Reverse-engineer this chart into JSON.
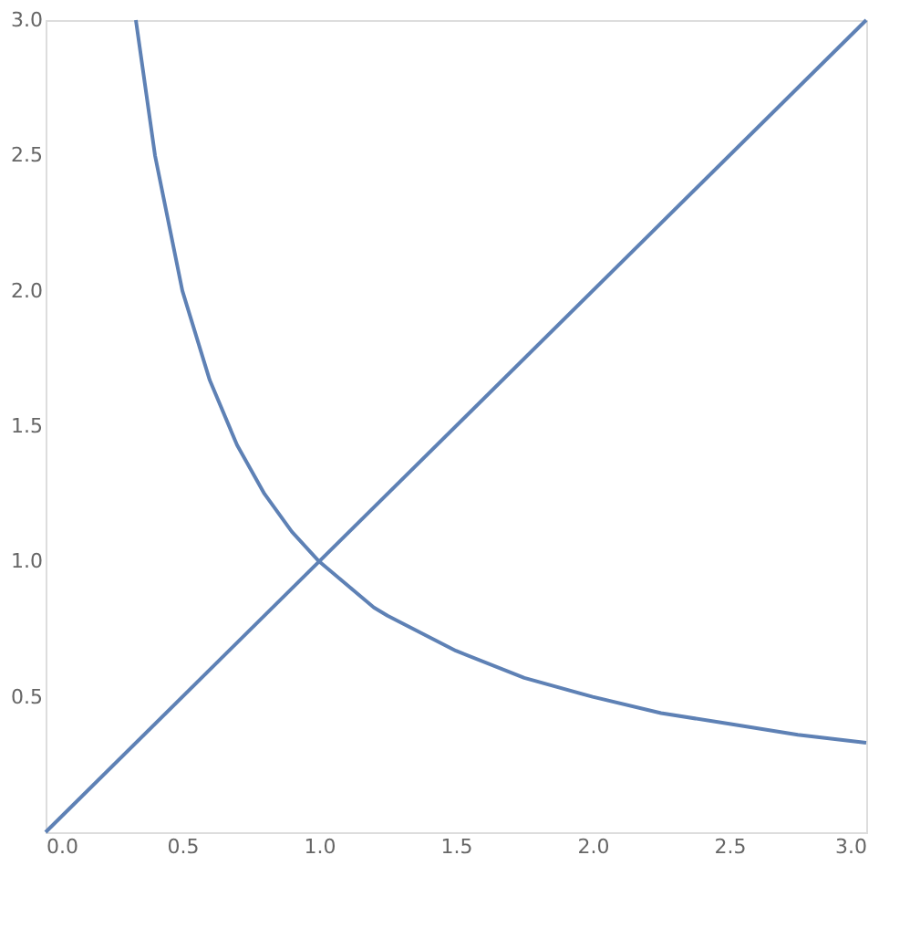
{
  "chart_data": {
    "type": "line",
    "grid": false,
    "legend": false,
    "marker": "none",
    "line_style": "solid",
    "xlim": [
      0,
      3
    ],
    "ylim": [
      0,
      3
    ],
    "xticks": [
      {
        "value": 0,
        "label": "0.0"
      },
      {
        "value": 0.5,
        "label": "0.5"
      },
      {
        "value": 1,
        "label": "1.0"
      },
      {
        "value": 1.5,
        "label": "1.5"
      },
      {
        "value": 2,
        "label": "2.0"
      },
      {
        "value": 2.5,
        "label": "2.5"
      },
      {
        "value": 3,
        "label": "3.0"
      }
    ],
    "yticks": [
      {
        "value": 0.5,
        "label": "0.5"
      },
      {
        "value": 1,
        "label": "1.0"
      },
      {
        "value": 1.5,
        "label": "1.5"
      },
      {
        "value": 2,
        "label": "2.0"
      },
      {
        "value": 2.5,
        "label": "2.5"
      },
      {
        "value": 3,
        "label": "3.0"
      }
    ],
    "series": [
      {
        "color": "#5e81b5",
        "x": [
          0.33,
          0.4,
          0.5,
          0.6,
          0.7,
          0.8,
          0.9,
          1.0,
          1.2,
          1.25,
          1.5,
          1.75,
          2.0,
          2.25,
          2.5,
          2.75,
          3.0
        ],
        "values": [
          3.0,
          2.5,
          2.0,
          1.67,
          1.43,
          1.25,
          1.11,
          1.0,
          0.83,
          0.8,
          0.67,
          0.57,
          0.5,
          0.44,
          0.4,
          0.36,
          0.33
        ]
      },
      {
        "color": "#5e81b5",
        "x": [
          0,
          3
        ],
        "values": [
          0,
          3
        ]
      }
    ]
  }
}
